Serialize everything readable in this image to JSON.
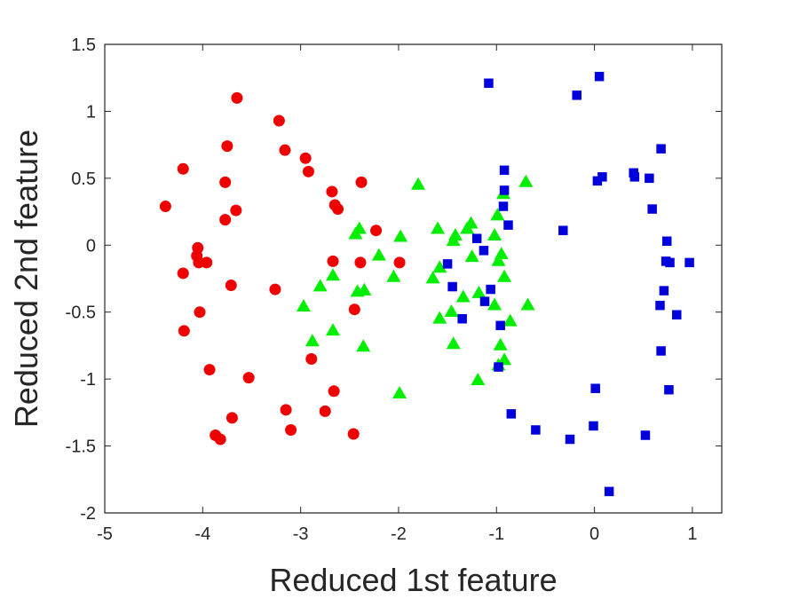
{
  "chart_data": {
    "type": "scatter",
    "xlabel": "Reduced 1st feature",
    "ylabel": "Reduced 2nd feature",
    "xlim": [
      -5,
      1.3
    ],
    "ylim": [
      -2,
      1.5
    ],
    "xticks": [
      -5,
      -4,
      -3,
      -2,
      -1,
      0,
      1
    ],
    "xtick_labels": [
      "-5",
      "-4",
      "-3",
      "-2",
      "-1",
      "0",
      "1"
    ],
    "yticks": [
      -2,
      -1.5,
      -1,
      -0.5,
      0,
      0.5,
      1,
      1.5
    ],
    "ytick_labels": [
      "-2",
      "-1.5",
      "-1",
      "-0.5",
      "0",
      "0.5",
      "1",
      "1.5"
    ],
    "grid": false,
    "series": [
      {
        "marker": "circle",
        "color": "#ee0000",
        "points": [
          [
            -3.65,
            1.1
          ],
          [
            -3.22,
            0.93
          ],
          [
            -3.75,
            0.74
          ],
          [
            -3.16,
            0.71
          ],
          [
            -2.95,
            0.65
          ],
          [
            -2.92,
            0.55
          ],
          [
            -4.2,
            0.57
          ],
          [
            -3.77,
            0.47
          ],
          [
            -2.68,
            0.4
          ],
          [
            -2.38,
            0.47
          ],
          [
            -2.65,
            0.3
          ],
          [
            -2.62,
            0.27
          ],
          [
            -3.66,
            0.26
          ],
          [
            -3.77,
            0.19
          ],
          [
            -4.38,
            0.29
          ],
          [
            -2.23,
            0.11
          ],
          [
            -4.05,
            -0.02
          ],
          [
            -4.06,
            -0.08
          ],
          [
            -4.04,
            -0.13
          ],
          [
            -3.96,
            -0.13
          ],
          [
            -2.67,
            -0.12
          ],
          [
            -2.39,
            -0.13
          ],
          [
            -1.99,
            -0.13
          ],
          [
            -4.2,
            -0.21
          ],
          [
            -3.71,
            -0.3
          ],
          [
            -3.26,
            -0.33
          ],
          [
            -4.03,
            -0.5
          ],
          [
            -2.45,
            -0.48
          ],
          [
            -4.19,
            -0.64
          ],
          [
            -2.89,
            -0.85
          ],
          [
            -3.93,
            -0.93
          ],
          [
            -3.53,
            -0.99
          ],
          [
            -2.66,
            -1.09
          ],
          [
            -3.15,
            -1.23
          ],
          [
            -2.75,
            -1.24
          ],
          [
            -3.7,
            -1.29
          ],
          [
            -3.1,
            -1.38
          ],
          [
            -3.87,
            -1.42
          ],
          [
            -3.82,
            -1.45
          ],
          [
            -2.46,
            -1.41
          ]
        ]
      },
      {
        "marker": "triangle",
        "color": "#00ee00",
        "points": [
          [
            -1.8,
            0.45
          ],
          [
            -0.7,
            0.47
          ],
          [
            -0.93,
            0.38
          ],
          [
            -0.99,
            0.22
          ],
          [
            -1.26,
            0.16
          ],
          [
            -1.3,
            0.12
          ],
          [
            -2.4,
            0.12
          ],
          [
            -2.44,
            0.08
          ],
          [
            -1.6,
            0.12
          ],
          [
            -1.42,
            0.07
          ],
          [
            -1.44,
            0.03
          ],
          [
            -1.98,
            0.06
          ],
          [
            -1.02,
            0.07
          ],
          [
            -0.95,
            -0.07
          ],
          [
            -0.98,
            -0.12
          ],
          [
            -2.2,
            -0.08
          ],
          [
            -1.25,
            -0.09
          ],
          [
            -1.58,
            -0.17
          ],
          [
            -1.65,
            -0.25
          ],
          [
            -2.05,
            -0.24
          ],
          [
            -2.67,
            -0.23
          ],
          [
            -2.8,
            -0.31
          ],
          [
            -0.92,
            -0.24
          ],
          [
            -2.42,
            -0.35
          ],
          [
            -2.35,
            -0.34
          ],
          [
            -1.34,
            -0.39
          ],
          [
            -1.18,
            -0.36
          ],
          [
            -2.97,
            -0.46
          ],
          [
            -1.02,
            -0.45
          ],
          [
            -0.68,
            -0.45
          ],
          [
            -1.46,
            -0.5
          ],
          [
            -1.58,
            -0.55
          ],
          [
            -2.67,
            -0.64
          ],
          [
            -0.86,
            -0.57
          ],
          [
            -2.88,
            -0.72
          ],
          [
            -2.36,
            -0.76
          ],
          [
            -1.44,
            -0.74
          ],
          [
            -0.96,
            -0.75
          ],
          [
            -0.92,
            -0.86
          ],
          [
            -0.98,
            -0.9
          ],
          [
            -1.19,
            -1.01
          ],
          [
            -1.99,
            -1.11
          ]
        ]
      },
      {
        "marker": "square",
        "color": "#0000dd",
        "points": [
          [
            0.05,
            1.26
          ],
          [
            -1.08,
            1.21
          ],
          [
            -0.18,
            1.12
          ],
          [
            0.68,
            0.72
          ],
          [
            -0.92,
            0.56
          ],
          [
            0.4,
            0.54
          ],
          [
            0.41,
            0.51
          ],
          [
            0.08,
            0.51
          ],
          [
            0.56,
            0.5
          ],
          [
            0.03,
            0.48
          ],
          [
            -0.92,
            0.41
          ],
          [
            -0.93,
            0.29
          ],
          [
            0.59,
            0.27
          ],
          [
            -0.88,
            0.15
          ],
          [
            -0.32,
            0.11
          ],
          [
            -1.2,
            0.05
          ],
          [
            0.74,
            0.03
          ],
          [
            -1.13,
            -0.04
          ],
          [
            0.73,
            -0.12
          ],
          [
            0.77,
            -0.13
          ],
          [
            0.97,
            -0.13
          ],
          [
            -1.5,
            -0.14
          ],
          [
            -1.45,
            -0.31
          ],
          [
            -1.06,
            -0.33
          ],
          [
            0.71,
            -0.34
          ],
          [
            -1.12,
            -0.42
          ],
          [
            0.67,
            -0.45
          ],
          [
            0.84,
            -0.52
          ],
          [
            -1.35,
            -0.55
          ],
          [
            -0.96,
            -0.6
          ],
          [
            0.68,
            -0.79
          ],
          [
            -0.98,
            -0.91
          ],
          [
            0.01,
            -1.07
          ],
          [
            0.76,
            -1.08
          ],
          [
            -0.85,
            -1.26
          ],
          [
            -0.01,
            -1.35
          ],
          [
            -0.6,
            -1.38
          ],
          [
            0.52,
            -1.42
          ],
          [
            -0.25,
            -1.45
          ],
          [
            0.15,
            -1.84
          ]
        ]
      }
    ]
  }
}
